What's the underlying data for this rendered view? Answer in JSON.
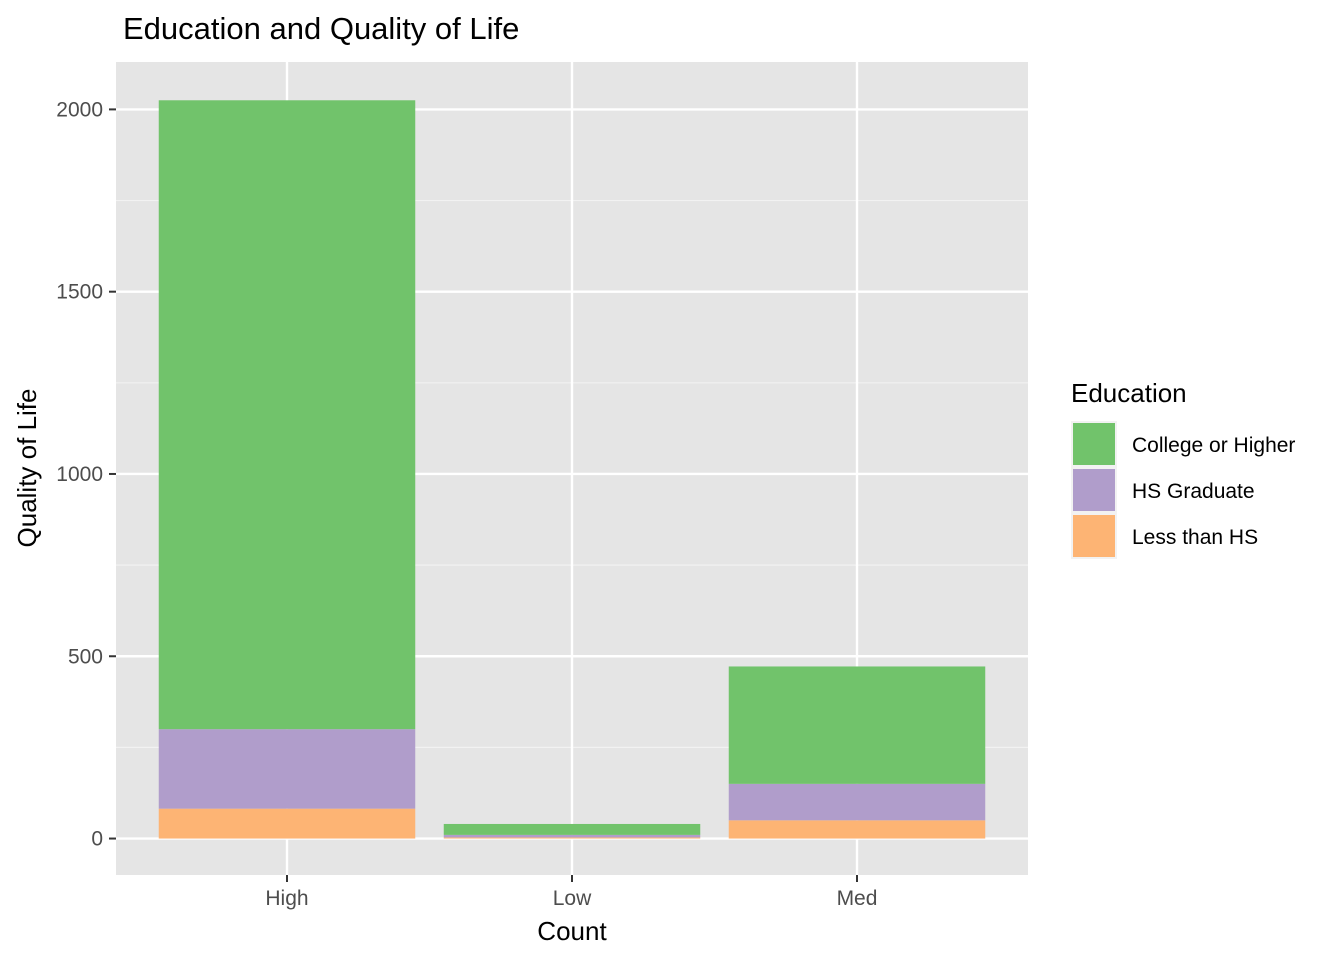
{
  "chart_data": {
    "type": "bar",
    "stacked": true,
    "title": "Education and Quality of Life",
    "xlabel": "Count",
    "ylabel": "Quality of Life",
    "categories": [
      "High",
      "Low",
      "Med"
    ],
    "ylim": [
      -100,
      2130
    ],
    "yticks": [
      0,
      500,
      1000,
      1500,
      2000
    ],
    "grid": true,
    "legend": {
      "title": "Education",
      "position": "right"
    },
    "series": [
      {
        "name": "Less than HS",
        "values": [
          82,
          3,
          50
        ],
        "color": "#fdb474"
      },
      {
        "name": "HS Graduate",
        "values": [
          218,
          7,
          100
        ],
        "color": "#b09dcb"
      },
      {
        "name": "College or Higher",
        "values": [
          1725,
          30,
          322
        ],
        "color": "#71c36b"
      }
    ],
    "legend_order": [
      "College or Higher",
      "HS Graduate",
      "Less than HS"
    ],
    "colors": {
      "panel": "#e5e5e5",
      "grid_major": "#ffffff",
      "grid_minor": "#f2f2f2",
      "tick": "#333333"
    }
  }
}
